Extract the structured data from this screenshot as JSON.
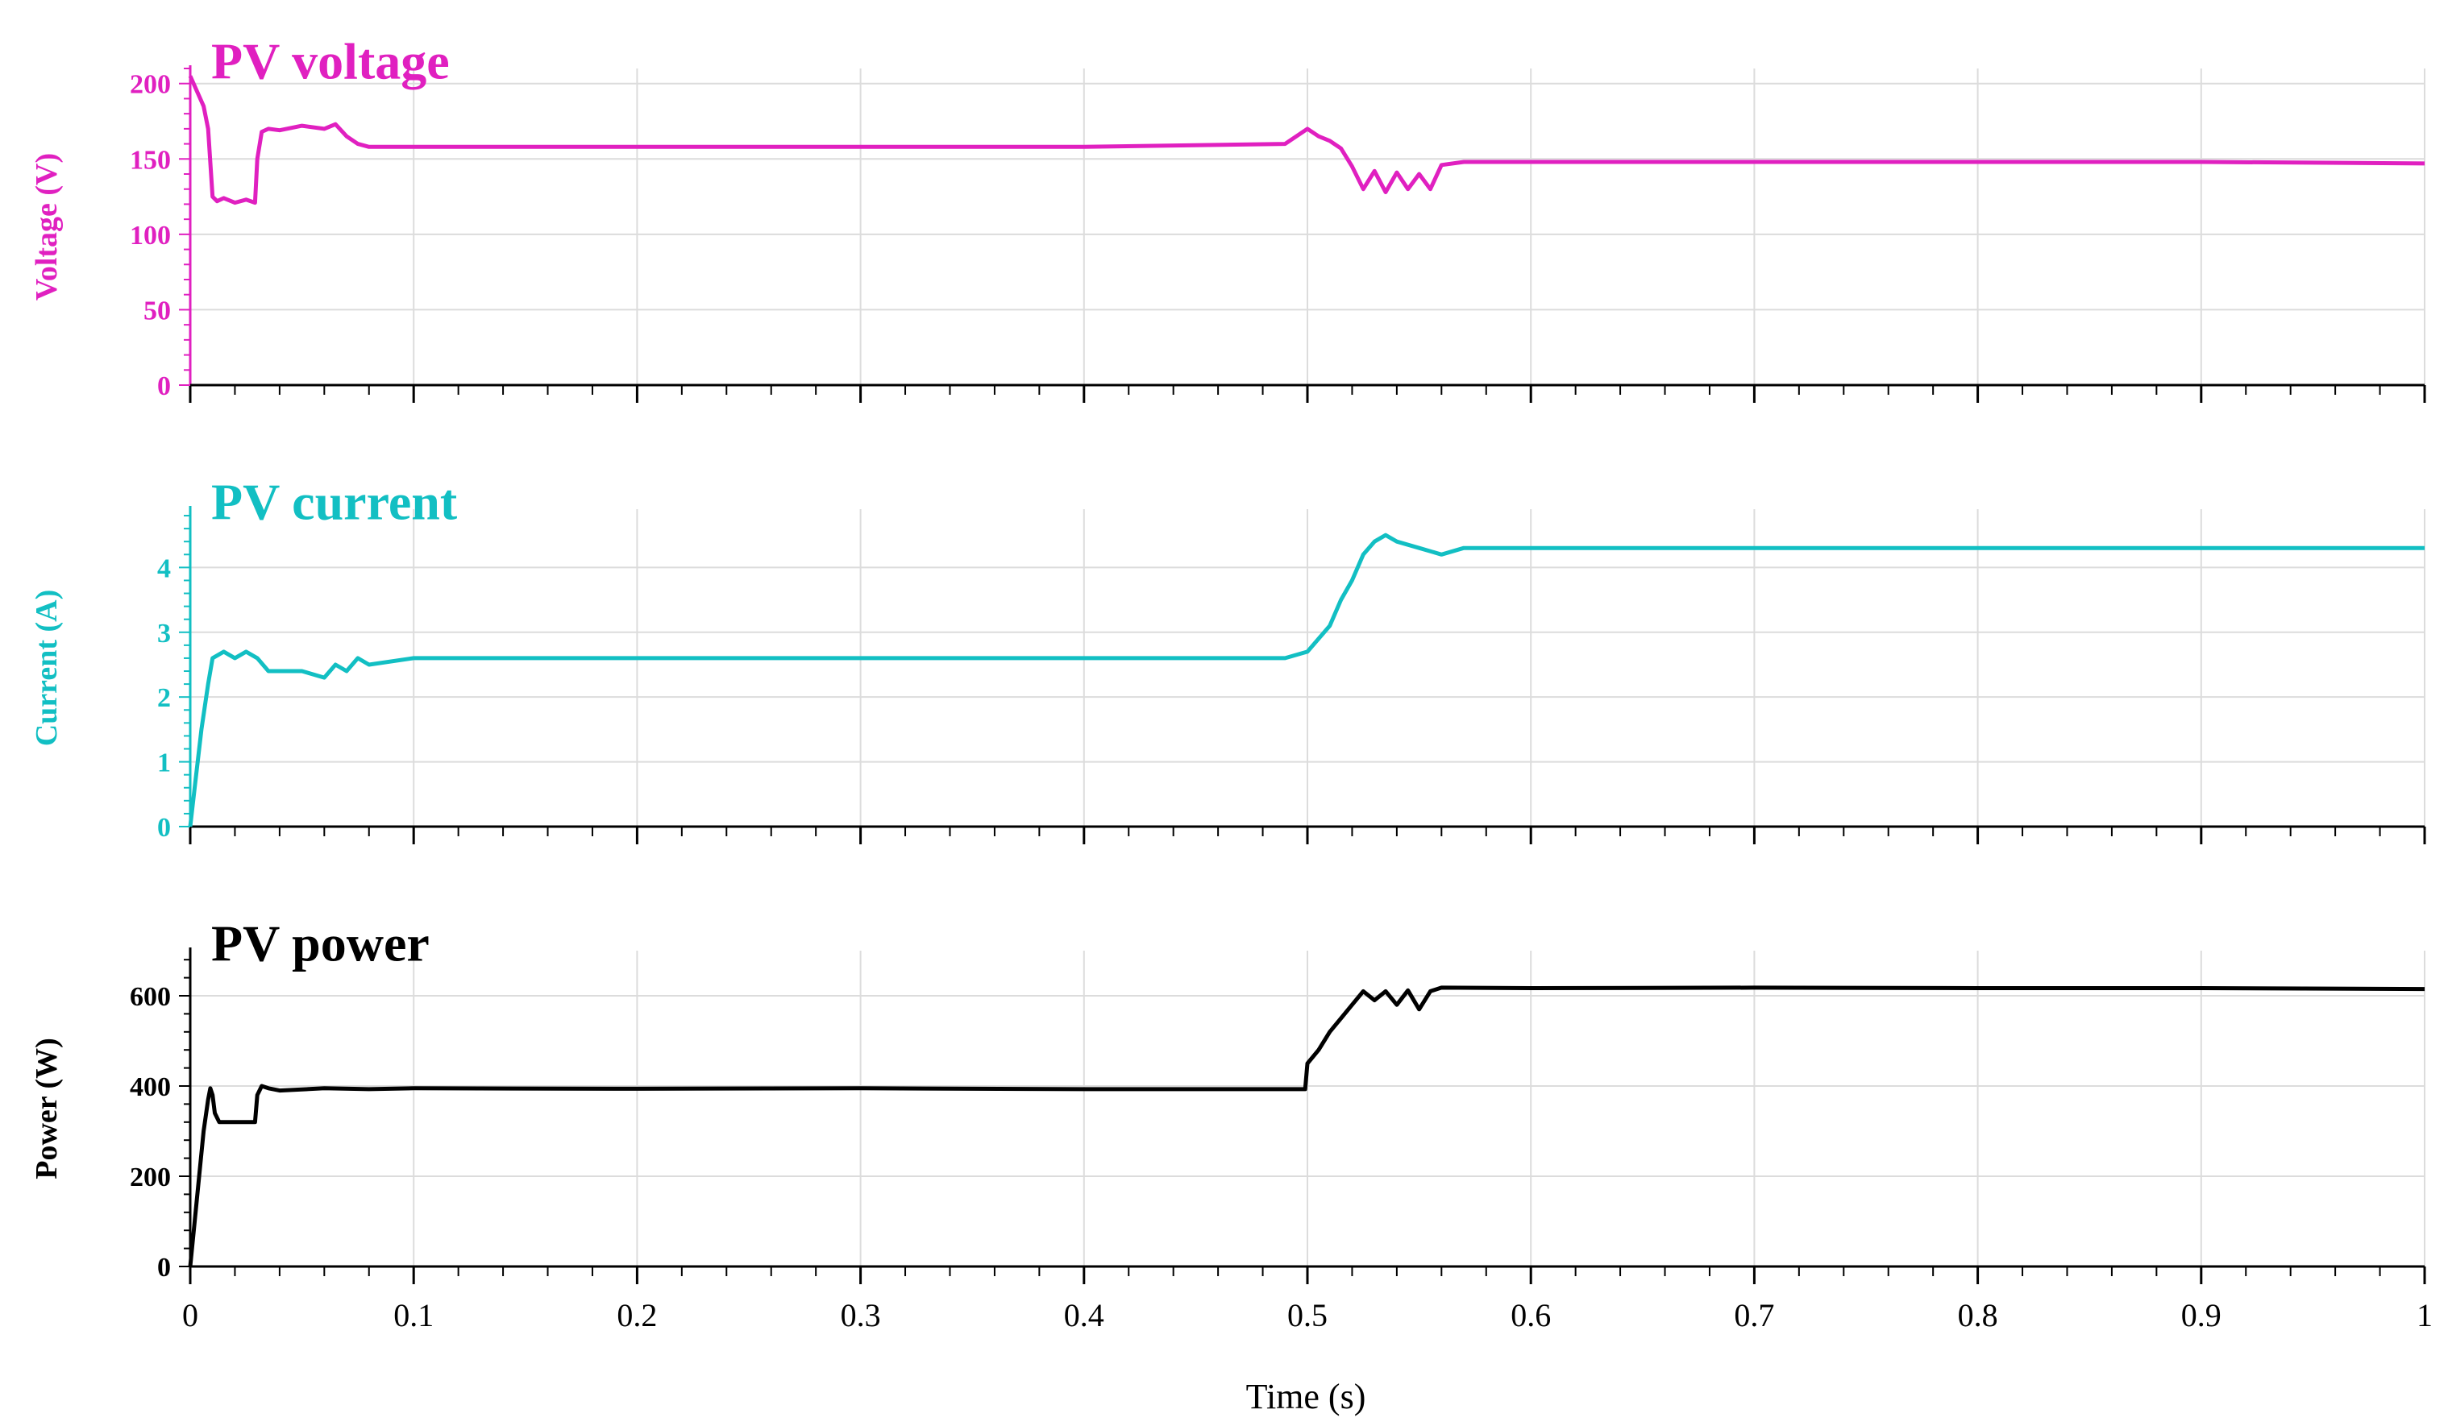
{
  "chart_data": [
    {
      "type": "line",
      "title": "PV voltage",
      "xlabel": "",
      "ylabel": "Voltage (V)",
      "color": "#e020c0",
      "xlim": [
        0,
        1
      ],
      "ylim": [
        0,
        210
      ],
      "yticks": [
        0,
        50,
        100,
        150,
        200
      ],
      "xticks": [
        0,
        0.1,
        0.2,
        0.3,
        0.4,
        0.5,
        0.6,
        0.7,
        0.8,
        0.9,
        1
      ],
      "grid": true,
      "series": [
        {
          "x": [
            0,
            0.003,
            0.006,
            0.008,
            0.01,
            0.012,
            0.015,
            0.02,
            0.025,
            0.029,
            0.03,
            0.032,
            0.035,
            0.04,
            0.05,
            0.06,
            0.065,
            0.07,
            0.075,
            0.08,
            0.1,
            0.2,
            0.3,
            0.4,
            0.49,
            0.5,
            0.505,
            0.51,
            0.515,
            0.52,
            0.525,
            0.53,
            0.535,
            0.54,
            0.545,
            0.55,
            0.555,
            0.56,
            0.57,
            0.6,
            0.7,
            0.8,
            0.9,
            1.0
          ],
          "y": [
            205,
            195,
            185,
            170,
            125,
            122,
            124,
            121,
            123,
            121,
            150,
            168,
            170,
            169,
            172,
            170,
            173,
            165,
            160,
            158,
            158,
            158,
            158,
            158,
            160,
            170,
            165,
            162,
            157,
            145,
            130,
            142,
            128,
            141,
            130,
            140,
            130,
            146,
            148,
            148,
            148,
            148,
            148,
            147
          ]
        }
      ]
    },
    {
      "type": "line",
      "title": "PV current",
      "xlabel": "",
      "ylabel": "Current (A)",
      "color": "#12bfc3",
      "xlim": [
        0,
        1
      ],
      "ylim": [
        0,
        4.9
      ],
      "yticks": [
        0,
        1,
        2,
        3,
        4
      ],
      "xticks": [
        0,
        0.1,
        0.2,
        0.3,
        0.4,
        0.5,
        0.6,
        0.7,
        0.8,
        0.9,
        1
      ],
      "grid": true,
      "series": [
        {
          "x": [
            0,
            0.002,
            0.005,
            0.008,
            0.01,
            0.015,
            0.02,
            0.025,
            0.03,
            0.035,
            0.04,
            0.05,
            0.06,
            0.065,
            0.07,
            0.075,
            0.08,
            0.1,
            0.2,
            0.3,
            0.4,
            0.49,
            0.5,
            0.505,
            0.51,
            0.515,
            0.52,
            0.525,
            0.53,
            0.535,
            0.54,
            0.55,
            0.56,
            0.57,
            0.6,
            0.7,
            0.8,
            0.9,
            1.0
          ],
          "y": [
            0,
            0.6,
            1.5,
            2.2,
            2.6,
            2.7,
            2.6,
            2.7,
            2.6,
            2.4,
            2.4,
            2.4,
            2.3,
            2.5,
            2.4,
            2.6,
            2.5,
            2.6,
            2.6,
            2.6,
            2.6,
            2.6,
            2.7,
            2.9,
            3.1,
            3.5,
            3.8,
            4.2,
            4.4,
            4.5,
            4.4,
            4.3,
            4.2,
            4.3,
            4.3,
            4.3,
            4.3,
            4.3,
            4.3
          ]
        }
      ]
    },
    {
      "type": "line",
      "title": "PV power",
      "xlabel": "Time (s)",
      "ylabel": "Power (W)",
      "color": "#000000",
      "xlim": [
        0,
        1
      ],
      "ylim": [
        0,
        700
      ],
      "yticks": [
        0,
        200,
        400,
        600
      ],
      "xticks": [
        0,
        0.1,
        0.2,
        0.3,
        0.4,
        0.5,
        0.6,
        0.7,
        0.8,
        0.9,
        1
      ],
      "xticklabels": [
        "0",
        "0.1",
        "0.2",
        "0.3",
        "0.4",
        "0.5",
        "0.6",
        "0.7",
        "0.8",
        "0.9",
        "1"
      ],
      "grid": true,
      "series": [
        {
          "x": [
            0,
            0.003,
            0.006,
            0.008,
            0.009,
            0.01,
            0.011,
            0.013,
            0.02,
            0.029,
            0.03,
            0.032,
            0.035,
            0.04,
            0.06,
            0.08,
            0.1,
            0.2,
            0.3,
            0.4,
            0.49,
            0.499,
            0.5,
            0.505,
            0.51,
            0.515,
            0.52,
            0.525,
            0.53,
            0.535,
            0.54,
            0.545,
            0.55,
            0.555,
            0.56,
            0.6,
            0.7,
            0.8,
            0.9,
            1.0
          ],
          "y": [
            0,
            150,
            300,
            370,
            395,
            380,
            340,
            320,
            320,
            320,
            380,
            400,
            395,
            390,
            395,
            393,
            395,
            394,
            395,
            393,
            393,
            393,
            450,
            480,
            520,
            550,
            580,
            610,
            590,
            610,
            580,
            612,
            570,
            610,
            618,
            617,
            618,
            617,
            617,
            615
          ]
        }
      ]
    }
  ]
}
